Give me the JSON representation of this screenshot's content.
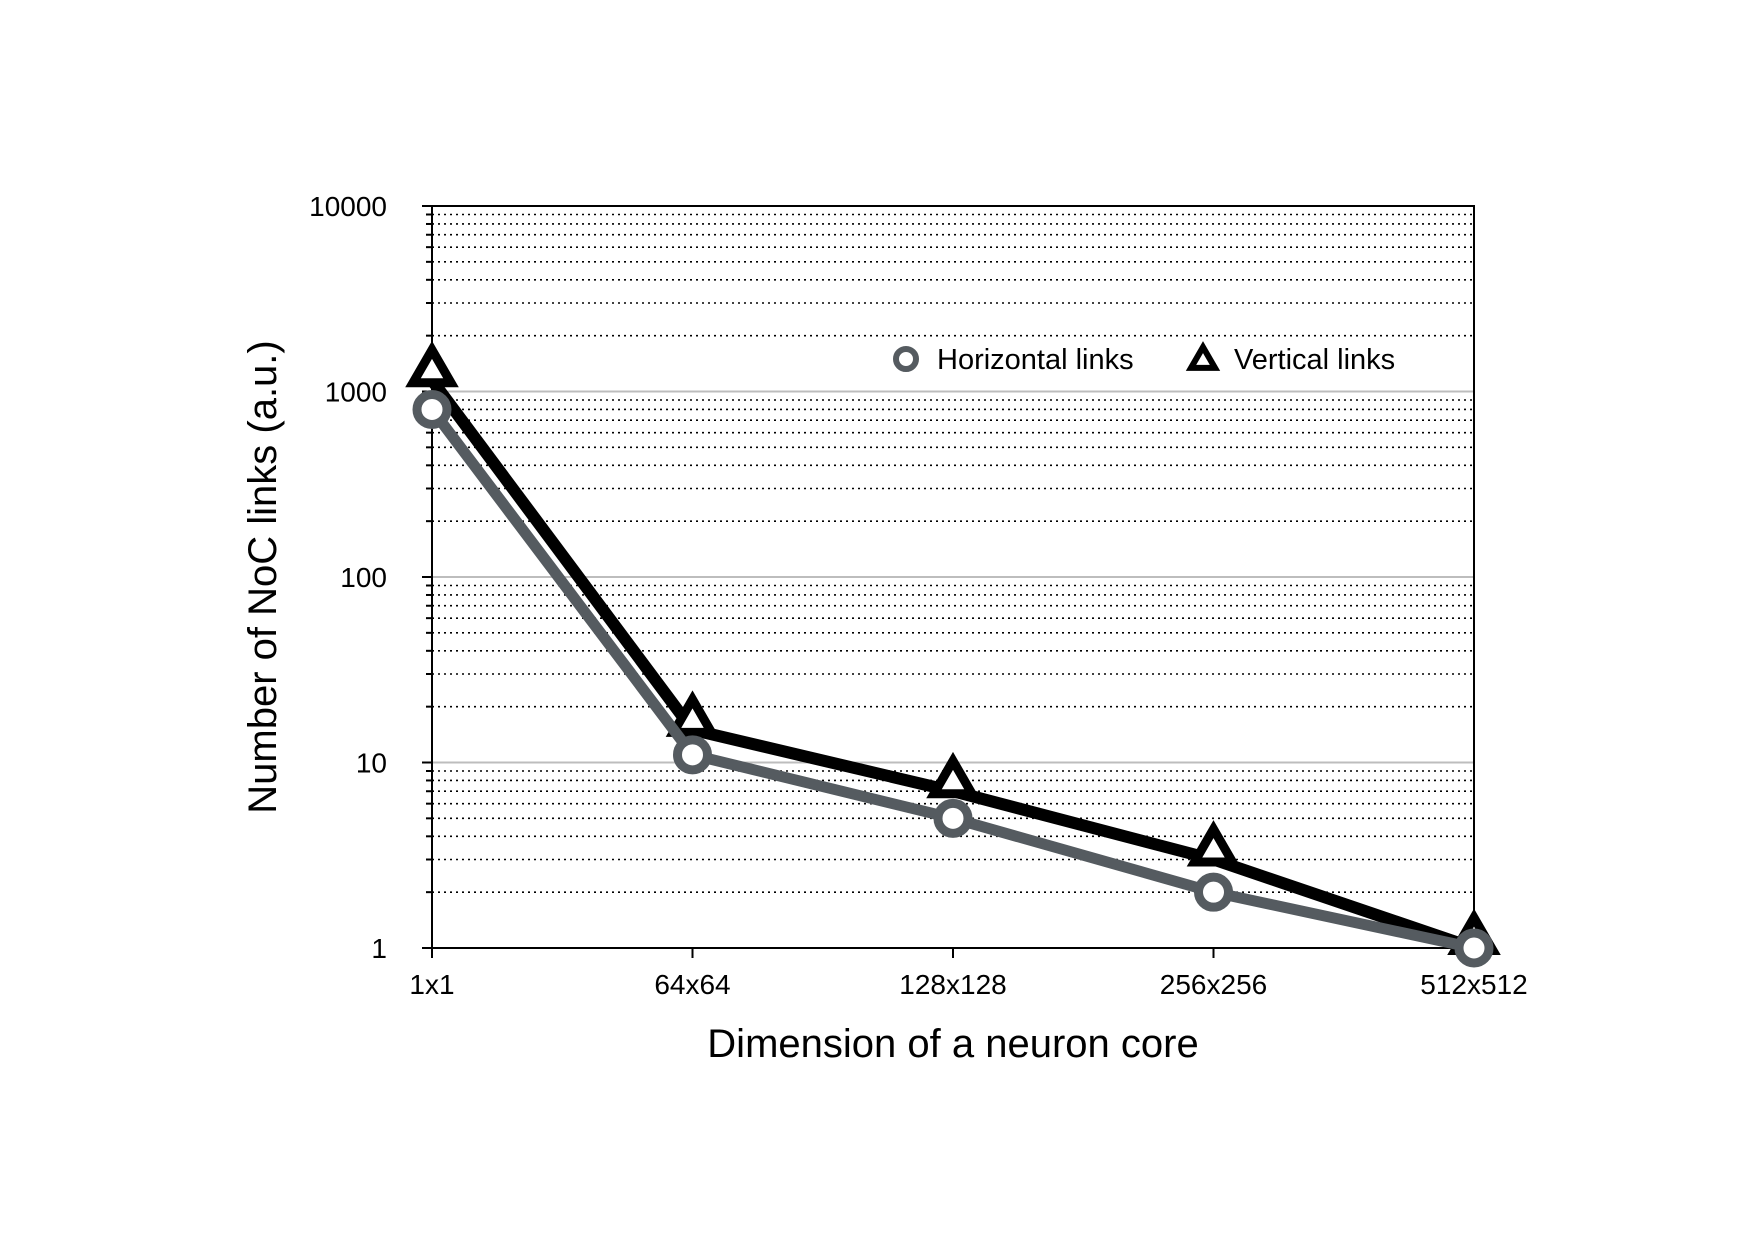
{
  "chart_data": {
    "type": "line",
    "xlabel": "Dimension of a neuron core",
    "ylabel": "Number of NoC links (a.u.)",
    "categories": [
      "1x1",
      "64x64",
      "128x128",
      "256x256",
      "512x512"
    ],
    "y_scale": "log",
    "ylim": [
      1,
      10000
    ],
    "y_ticks": [
      "1",
      "10",
      "100",
      "1000",
      "10000"
    ],
    "grid": true,
    "legend_position": "top-right",
    "series": [
      {
        "name": "Horizontal links",
        "marker": "circle",
        "color": "#555b60",
        "values": [
          800,
          11,
          5,
          2,
          1
        ]
      },
      {
        "name": "Vertical links",
        "marker": "triangle",
        "color": "#000000",
        "values": [
          1150,
          15,
          7,
          3,
          1
        ]
      }
    ]
  }
}
